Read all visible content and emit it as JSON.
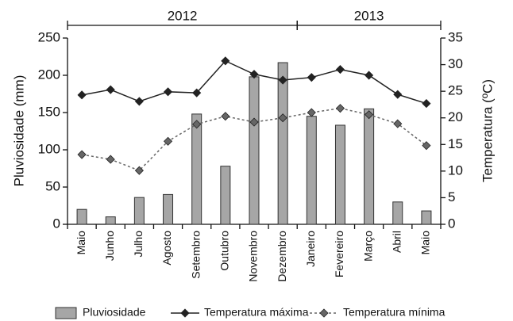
{
  "chart_data": {
    "type": "bar_line",
    "categories": [
      "Maio",
      "Junho",
      "Julho",
      "Agosto",
      "Setembro",
      "Outubro",
      "Novembro",
      "Dezembro",
      "Janeiro",
      "Fevereiro",
      "Março",
      "Abril",
      "Maio"
    ],
    "groups": [
      {
        "label": "2012",
        "start": 0,
        "end": 7
      },
      {
        "label": "2013",
        "start": 8,
        "end": 12
      }
    ],
    "ylabel": "Pluviosidade (mm)",
    "y2label": "Temperatura (ºC)",
    "ylim": [
      0,
      250
    ],
    "yticks": [
      0,
      50,
      100,
      150,
      200,
      250
    ],
    "y2lim": [
      0,
      35
    ],
    "y2ticks": [
      0,
      5,
      10,
      15,
      20,
      25,
      30,
      35
    ],
    "series": [
      {
        "name": "Pluviosidade",
        "kind": "bar",
        "color": "#a6a6a6",
        "values": [
          20,
          10,
          36,
          40,
          148,
          78,
          198,
          217,
          145,
          133,
          155,
          30,
          18
        ]
      },
      {
        "name": "Temperatura máxima",
        "kind": "line",
        "axis": "y2",
        "color": "#222222",
        "linestyle": "solid",
        "values": [
          24.3,
          25.3,
          23.1,
          24.9,
          24.7,
          30.7,
          28.2,
          27.1,
          27.6,
          29.1,
          28.0,
          24.4,
          22.7
        ]
      },
      {
        "name": "Temperatura mínima",
        "kind": "line",
        "axis": "y2",
        "color": "#666666",
        "linestyle": "dashed",
        "values": [
          13.1,
          12.2,
          10.1,
          15.6,
          18.8,
          20.3,
          19.2,
          20.0,
          21.0,
          21.8,
          20.6,
          18.9,
          14.8
        ]
      }
    ],
    "legend": "bottom"
  }
}
